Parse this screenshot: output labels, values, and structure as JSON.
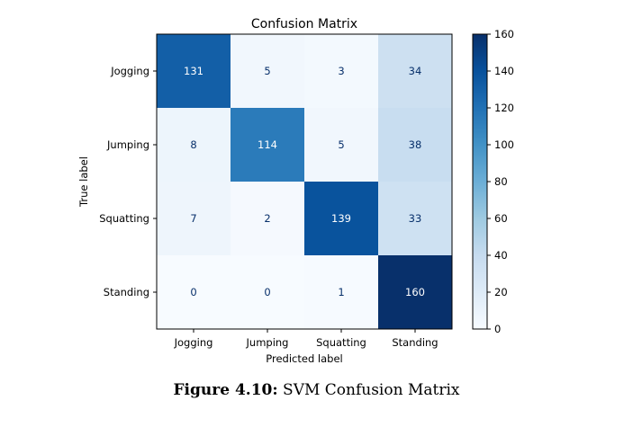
{
  "caption": {
    "prefix": "Figure 4.10:",
    "text": "SVM Confusion Matrix"
  },
  "chart_data": {
    "type": "heatmap",
    "title": "Confusion Matrix",
    "xlabel": "Predicted label",
    "ylabel": "True label",
    "x_categories": [
      "Jogging",
      "Jumping",
      "Squatting",
      "Standing"
    ],
    "y_categories": [
      "Jogging",
      "Jumping",
      "Squatting",
      "Standing"
    ],
    "values": [
      [
        131,
        5,
        3,
        34
      ],
      [
        8,
        114,
        5,
        38
      ],
      [
        7,
        2,
        139,
        33
      ],
      [
        0,
        0,
        1,
        160
      ]
    ],
    "colormap": "Blues",
    "colorbar": {
      "range": [
        0,
        160
      ],
      "ticks": [
        0,
        20,
        40,
        60,
        80,
        100,
        120,
        140,
        160
      ]
    }
  }
}
